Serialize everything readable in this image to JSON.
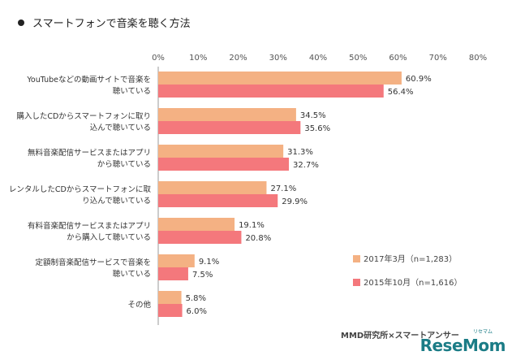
{
  "title": "スマートフォンで音楽を聴く方法",
  "source": "MMD研究所×スマートアンサー",
  "logo": "ReseMom",
  "logo_sub": "リセマム",
  "chart_data": {
    "type": "bar",
    "orientation": "horizontal",
    "title": "スマートフォンで音楽を聴く方法",
    "xlim": [
      0,
      80
    ],
    "ticks": [
      "0%",
      "10%",
      "20%",
      "30%",
      "40%",
      "50%",
      "60%",
      "70%",
      "80%"
    ],
    "categories": [
      [
        "YouTubeなどの動画サイトで音楽を",
        "聴いている"
      ],
      [
        "購入したCDからスマートフォンに取り",
        "込んで聴いている"
      ],
      [
        "無料音楽配信サービスまたはアプリ",
        "から聴いている"
      ],
      [
        "レンタルしたCDからスマートフォンに取",
        "り込んで聴いている"
      ],
      [
        "有料音楽配信サービスまたはアプリ",
        "から購入して聴いている"
      ],
      [
        "定額制音楽配信サービスで音楽を",
        "聴いている"
      ],
      [
        "その他"
      ]
    ],
    "series": [
      {
        "name": "2017年3月（n=1,283）",
        "color": "#f4b183",
        "values": [
          60.9,
          34.5,
          31.3,
          27.1,
          19.1,
          9.1,
          5.8
        ],
        "labels": [
          "60.9%",
          "34.5%",
          "31.3%",
          "27.1%",
          "19.1%",
          "9.1%",
          "5.8%"
        ]
      },
      {
        "name": "2015年10月（n=1,616）",
        "color": "#f4787c",
        "values": [
          56.4,
          35.6,
          32.7,
          29.9,
          20.8,
          7.5,
          6.0
        ],
        "labels": [
          "56.4%",
          "35.6%",
          "32.7%",
          "29.9%",
          "20.8%",
          "7.5%",
          "6.0%"
        ]
      }
    ],
    "legend_position": "bottom-right",
    "grid": false
  }
}
